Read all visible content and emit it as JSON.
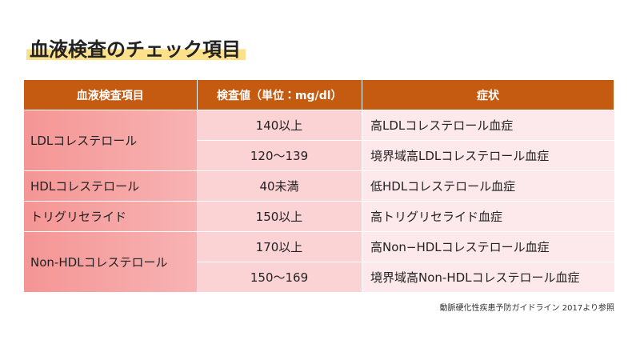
{
  "header": {
    "title": "血液検査のチェック項目"
  },
  "table": {
    "columns": [
      "血液検査項目",
      "検査値（単位：mg/dl）",
      "症状"
    ],
    "groups": [
      {
        "name": "LDLコレステロール",
        "rows": [
          {
            "value": "140以上",
            "symptom": "高LDLコレステロール血症"
          },
          {
            "value": "120〜139",
            "symptom": "境界域高LDLコレステロール血症"
          }
        ]
      },
      {
        "name": "HDLコレステロール",
        "rows": [
          {
            "value": "40未満",
            "symptom": "低HDLコレステロール血症"
          }
        ]
      },
      {
        "name": "トリグリセライド",
        "rows": [
          {
            "value": "150以上",
            "symptom": "高トリグリセライド血症"
          }
        ]
      },
      {
        "name": "Non-HDLコレステロール",
        "rows": [
          {
            "value": "170以上",
            "symptom": "高Non−HDLコレステロール血症"
          },
          {
            "value": "150〜169",
            "symptom": "境界域高Non-HDLコレステロール血症"
          }
        ]
      }
    ]
  },
  "footnote": "動脈硬化性疾患予防ガイドライン 2017より参照"
}
